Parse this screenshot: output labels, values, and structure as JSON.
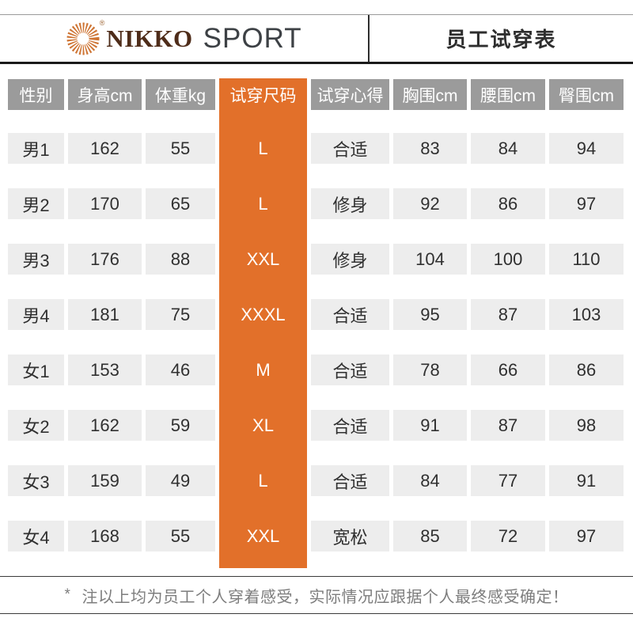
{
  "brand": {
    "name": "NIKKO",
    "suffix": "SPORT",
    "registered_mark": "®",
    "logo_icon": "sunburst-icon",
    "logo_color": "#CE7433",
    "name_color": "#4E2C19",
    "suffix_color": "#3D4145"
  },
  "header": {
    "title": "员工试穿表"
  },
  "table": {
    "columns": [
      "性别",
      "身高cm",
      "体重kg",
      "试穿尺码",
      "试穿心得",
      "胸围cm",
      "腰围cm",
      "臀围cm"
    ],
    "highlight_column_index": 3,
    "colors": {
      "header_bg": "#9B9B9B",
      "header_text": "#FFFFFF",
      "row_bg": "#EDEDED",
      "cell_text": "#303030",
      "accent": "#E2702A"
    },
    "rows": [
      [
        "男1",
        "162",
        "55",
        "L",
        "合适",
        "83",
        "84",
        "94"
      ],
      [
        "男2",
        "170",
        "65",
        "L",
        "修身",
        "92",
        "86",
        "97"
      ],
      [
        "男3",
        "176",
        "88",
        "XXL",
        "修身",
        "104",
        "100",
        "110"
      ],
      [
        "男4",
        "181",
        "75",
        "XXXL",
        "合适",
        "95",
        "87",
        "103"
      ],
      [
        "女1",
        "153",
        "46",
        "M",
        "合适",
        "78",
        "66",
        "86"
      ],
      [
        "女2",
        "162",
        "59",
        "XL",
        "合适",
        "91",
        "87",
        "98"
      ],
      [
        "女3",
        "159",
        "49",
        "L",
        "合适",
        "84",
        "77",
        "91"
      ],
      [
        "女4",
        "168",
        "55",
        "XXL",
        "宽松",
        "85",
        "72",
        "97"
      ]
    ]
  },
  "footer": {
    "mark": "*",
    "text": "注以上均为员工个人穿着感受，实际情况应跟据个人最终感受确定！"
  }
}
